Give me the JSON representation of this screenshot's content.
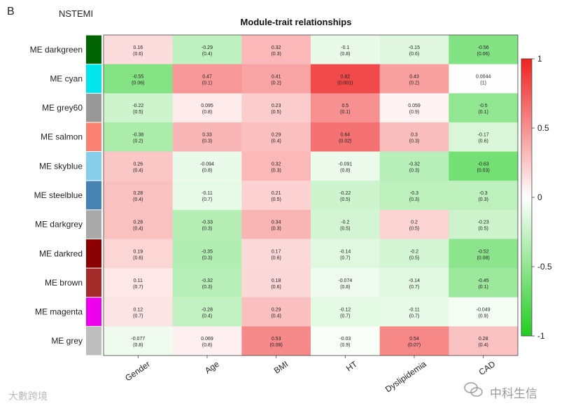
{
  "panel_letter": "B",
  "cohort": "NSTEMI",
  "watermarks": {
    "left": "大數跨境",
    "right": "中科生信"
  },
  "colors": {
    "neg": "#22cc22",
    "mid": "#ffffff",
    "pos": "#ee2222"
  },
  "chart_data": {
    "type": "heatmap",
    "title": "Module-trait relationships",
    "columns": [
      "Gender",
      "Age",
      "BMI",
      "HT",
      "Dyslipidemia",
      "CAD"
    ],
    "rows": [
      {
        "label": "ME darkgreen",
        "color": "#006400",
        "cells": [
          [
            "0.16",
            "(0.6)"
          ],
          [
            "-0.29",
            "(0.4)"
          ],
          [
            "0.32",
            "(0.3)"
          ],
          [
            "-0.1",
            "(0.8)"
          ],
          [
            "-0.15",
            "(0.6)"
          ],
          [
            "-0.56",
            "(0.06)"
          ]
        ]
      },
      {
        "label": "ME cyan",
        "color": "#00e5ee",
        "cells": [
          [
            "-0.55",
            "(0.06)"
          ],
          [
            "0.47",
            "(0.1)"
          ],
          [
            "0.41",
            "(0.2)"
          ],
          [
            "0.82",
            "(0.001)"
          ],
          [
            "0.43",
            "(0.2)"
          ],
          [
            "0.0044",
            "(1)"
          ]
        ]
      },
      {
        "label": "ME grey60",
        "color": "#999999",
        "cells": [
          [
            "-0.22",
            "(0.5)"
          ],
          [
            "0.095",
            "(0.8)"
          ],
          [
            "0.23",
            "(0.5)"
          ],
          [
            "0.5",
            "(0.1)"
          ],
          [
            "0.059",
            "(0.9)"
          ],
          [
            "-0.5",
            "(0.1)"
          ]
        ]
      },
      {
        "label": "ME salmon",
        "color": "#fa8072",
        "cells": [
          [
            "-0.38",
            "(0.2)"
          ],
          [
            "0.33",
            "(0.3)"
          ],
          [
            "0.29",
            "(0.4)"
          ],
          [
            "0.64",
            "(0.02)"
          ],
          [
            "0.3",
            "(0.3)"
          ],
          [
            "-0.17",
            "(0.6)"
          ]
        ]
      },
      {
        "label": "ME skyblue",
        "color": "#87ceeb",
        "cells": [
          [
            "0.26",
            "(0.4)"
          ],
          [
            "-0.094",
            "(0.8)"
          ],
          [
            "0.32",
            "(0.3)"
          ],
          [
            "-0.091",
            "(0.8)"
          ],
          [
            "-0.32",
            "(0.3)"
          ],
          [
            "-0.63",
            "(0.03)"
          ]
        ]
      },
      {
        "label": "ME steelblue",
        "color": "#4682b4",
        "cells": [
          [
            "0.28",
            "(0.4)"
          ],
          [
            "-0.11",
            "(0.7)"
          ],
          [
            "0.21",
            "(0.5)"
          ],
          [
            "-0.22",
            "(0.5)"
          ],
          [
            "-0.3",
            "(0.3)"
          ],
          [
            "-0.3",
            "(0.3)"
          ]
        ]
      },
      {
        "label": "ME darkgrey",
        "color": "#a9a9a9",
        "cells": [
          [
            "0.28",
            "(0.4)"
          ],
          [
            "-0.33",
            "(0.3)"
          ],
          [
            "0.34",
            "(0.3)"
          ],
          [
            "-0.2",
            "(0.5)"
          ],
          [
            "0.2",
            "(0.5)"
          ],
          [
            "-0.23",
            "(0.5)"
          ]
        ]
      },
      {
        "label": "ME darkred",
        "color": "#8b0000",
        "cells": [
          [
            "0.19",
            "(0.6)"
          ],
          [
            "-0.35",
            "(0.3)"
          ],
          [
            "0.17",
            "(0.6)"
          ],
          [
            "-0.14",
            "(0.7)"
          ],
          [
            "-0.2",
            "(0.5)"
          ],
          [
            "-0.52",
            "(0.08)"
          ]
        ]
      },
      {
        "label": "ME brown",
        "color": "#a52a2a",
        "cells": [
          [
            "0.11",
            "(0.7)"
          ],
          [
            "-0.32",
            "(0.3)"
          ],
          [
            "0.18",
            "(0.6)"
          ],
          [
            "-0.074",
            "(0.8)"
          ],
          [
            "-0.14",
            "(0.7)"
          ],
          [
            "-0.45",
            "(0.1)"
          ]
        ]
      },
      {
        "label": "ME magenta",
        "color": "#ee00ee",
        "cells": [
          [
            "0.12",
            "(0.7)"
          ],
          [
            "-0.28",
            "(0.4)"
          ],
          [
            "0.29",
            "(0.4)"
          ],
          [
            "-0.12",
            "(0.7)"
          ],
          [
            "-0.11",
            "(0.7)"
          ],
          [
            "-0.049",
            "(0.9)"
          ]
        ]
      },
      {
        "label": "ME grey",
        "color": "#bebebe",
        "cells": [
          [
            "-0.077",
            "(0.8)"
          ],
          [
            "0.069",
            "(0.8)"
          ],
          [
            "0.53",
            "(0.08)"
          ],
          [
            "-0.03",
            "(0.9)"
          ],
          [
            "0.54",
            "(0.07)"
          ],
          [
            "0.28",
            "(0.4)"
          ]
        ]
      }
    ],
    "colorbar": {
      "range": [
        -1,
        1
      ],
      "ticks": [
        "1",
        "0.5",
        "0",
        "-0.5",
        "-1"
      ]
    }
  }
}
